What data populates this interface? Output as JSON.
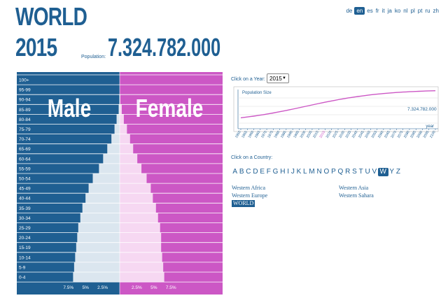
{
  "header": {
    "title": "WORLD",
    "year": "2015",
    "population_label": "Population:",
    "population_value": "7.324.782.000"
  },
  "languages": {
    "items": [
      "de",
      "en",
      "es",
      "fr",
      "it",
      "ja",
      "ko",
      "nl",
      "pl",
      "pt",
      "ru",
      "zh"
    ],
    "active": "en"
  },
  "pyramid": {
    "male_label": "Male",
    "female_label": "Female",
    "colors": {
      "male_bg": "#1f5f92",
      "female_bg": "#cc57c5",
      "male_fill": "#dbe6ef",
      "female_fill": "#f6d8f2",
      "text": "#ffffff"
    },
    "age_groups": [
      "100+",
      "95-99",
      "90-94",
      "85-89",
      "80-84",
      "75-79",
      "70-74",
      "65-69",
      "60-64",
      "55-59",
      "50-54",
      "45-49",
      "40-44",
      "35-39",
      "30-34",
      "25-29",
      "20-24",
      "15-19",
      "10-14",
      "5-9",
      "0-4"
    ],
    "male_pct": [
      0.0,
      0.0,
      0.03,
      0.1,
      0.3,
      0.5,
      0.8,
      1.2,
      1.6,
      2.0,
      2.6,
      3.0,
      3.3,
      3.6,
      3.8,
      4.0,
      4.1,
      4.2,
      4.3,
      4.4,
      4.5
    ],
    "female_pct": [
      0.0,
      0.0,
      0.06,
      0.2,
      0.4,
      0.7,
      1.0,
      1.3,
      1.7,
      2.1,
      2.6,
      3.0,
      3.2,
      3.5,
      3.7,
      3.9,
      4.0,
      4.0,
      4.1,
      4.2,
      4.3
    ],
    "axis_ticks": [
      "7.5%",
      "5%",
      "2.5%",
      "2.5%",
      "5%",
      "7.5%"
    ]
  },
  "year_control": {
    "label": "Click on a Year:",
    "selected": "2015"
  },
  "chart_data": {
    "type": "line",
    "title": "Population Size",
    "xlabel": "year",
    "annotation": "7.324.782.000",
    "x": [
      1950,
      1955,
      1960,
      1965,
      1970,
      1975,
      1980,
      1985,
      1990,
      1995,
      2000,
      2005,
      2010,
      2015,
      2020,
      2025,
      2030,
      2035,
      2040,
      2045,
      2050,
      2055,
      2060,
      2065,
      2070,
      2075,
      2080,
      2085,
      2090,
      2095,
      2100
    ],
    "highlight_x": 2015,
    "color": "#cc57c5"
  },
  "country_control": {
    "label": "Click on a Country:",
    "letters": [
      "A",
      "B",
      "C",
      "D",
      "E",
      "F",
      "G",
      "H",
      "I",
      "J",
      "K",
      "L",
      "M",
      "N",
      "O",
      "P",
      "Q",
      "R",
      "S",
      "T",
      "U",
      "V",
      "W",
      "Y",
      "Z"
    ],
    "active_letter": "W",
    "col1": [
      "Western Africa",
      "Western Europe",
      "WORLD"
    ],
    "col2": [
      "Western Asia",
      "Western Sahara"
    ],
    "active_country": "WORLD"
  }
}
